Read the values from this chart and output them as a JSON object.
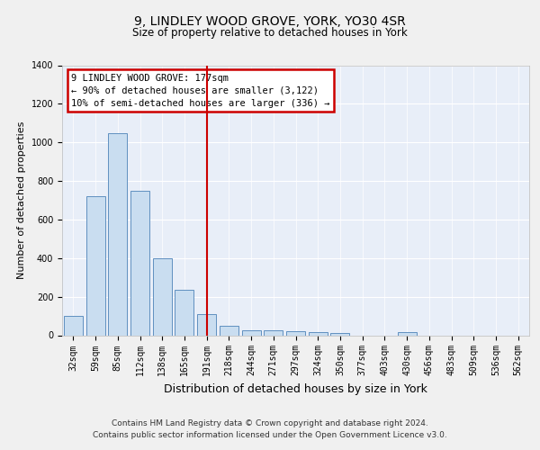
{
  "title": "9, LINDLEY WOOD GROVE, YORK, YO30 4SR",
  "subtitle": "Size of property relative to detached houses in York",
  "xlabel": "Distribution of detached houses by size in York",
  "ylabel": "Number of detached properties",
  "categories": [
    "32sqm",
    "59sqm",
    "85sqm",
    "112sqm",
    "138sqm",
    "165sqm",
    "191sqm",
    "218sqm",
    "244sqm",
    "271sqm",
    "297sqm",
    "324sqm",
    "350sqm",
    "377sqm",
    "403sqm",
    "430sqm",
    "456sqm",
    "483sqm",
    "509sqm",
    "536sqm",
    "562sqm"
  ],
  "values": [
    100,
    720,
    1050,
    750,
    400,
    235,
    110,
    50,
    25,
    25,
    20,
    15,
    10,
    0,
    0,
    15,
    0,
    0,
    0,
    0,
    0
  ],
  "bar_color": "#c9ddf0",
  "bar_edge_color": "#6090c0",
  "vline_x_index": 6,
  "vline_color": "#cc0000",
  "annotation_text": "9 LINDLEY WOOD GROVE: 177sqm\n← 90% of detached houses are smaller (3,122)\n10% of semi-detached houses are larger (336) →",
  "annotation_box_edge_color": "#cc0000",
  "ylim": [
    0,
    1400
  ],
  "yticks": [
    0,
    200,
    400,
    600,
    800,
    1000,
    1200,
    1400
  ],
  "footer_line1": "Contains HM Land Registry data © Crown copyright and database right 2024.",
  "footer_line2": "Contains public sector information licensed under the Open Government Licence v3.0.",
  "fig_bg_color": "#f0f0f0",
  "plot_bg_color": "#e8eef8",
  "grid_color": "#ffffff",
  "title_fontsize": 10,
  "subtitle_fontsize": 8.5,
  "xlabel_fontsize": 9,
  "ylabel_fontsize": 8,
  "tick_fontsize": 7,
  "footer_fontsize": 6.5,
  "annot_fontsize": 7.5
}
